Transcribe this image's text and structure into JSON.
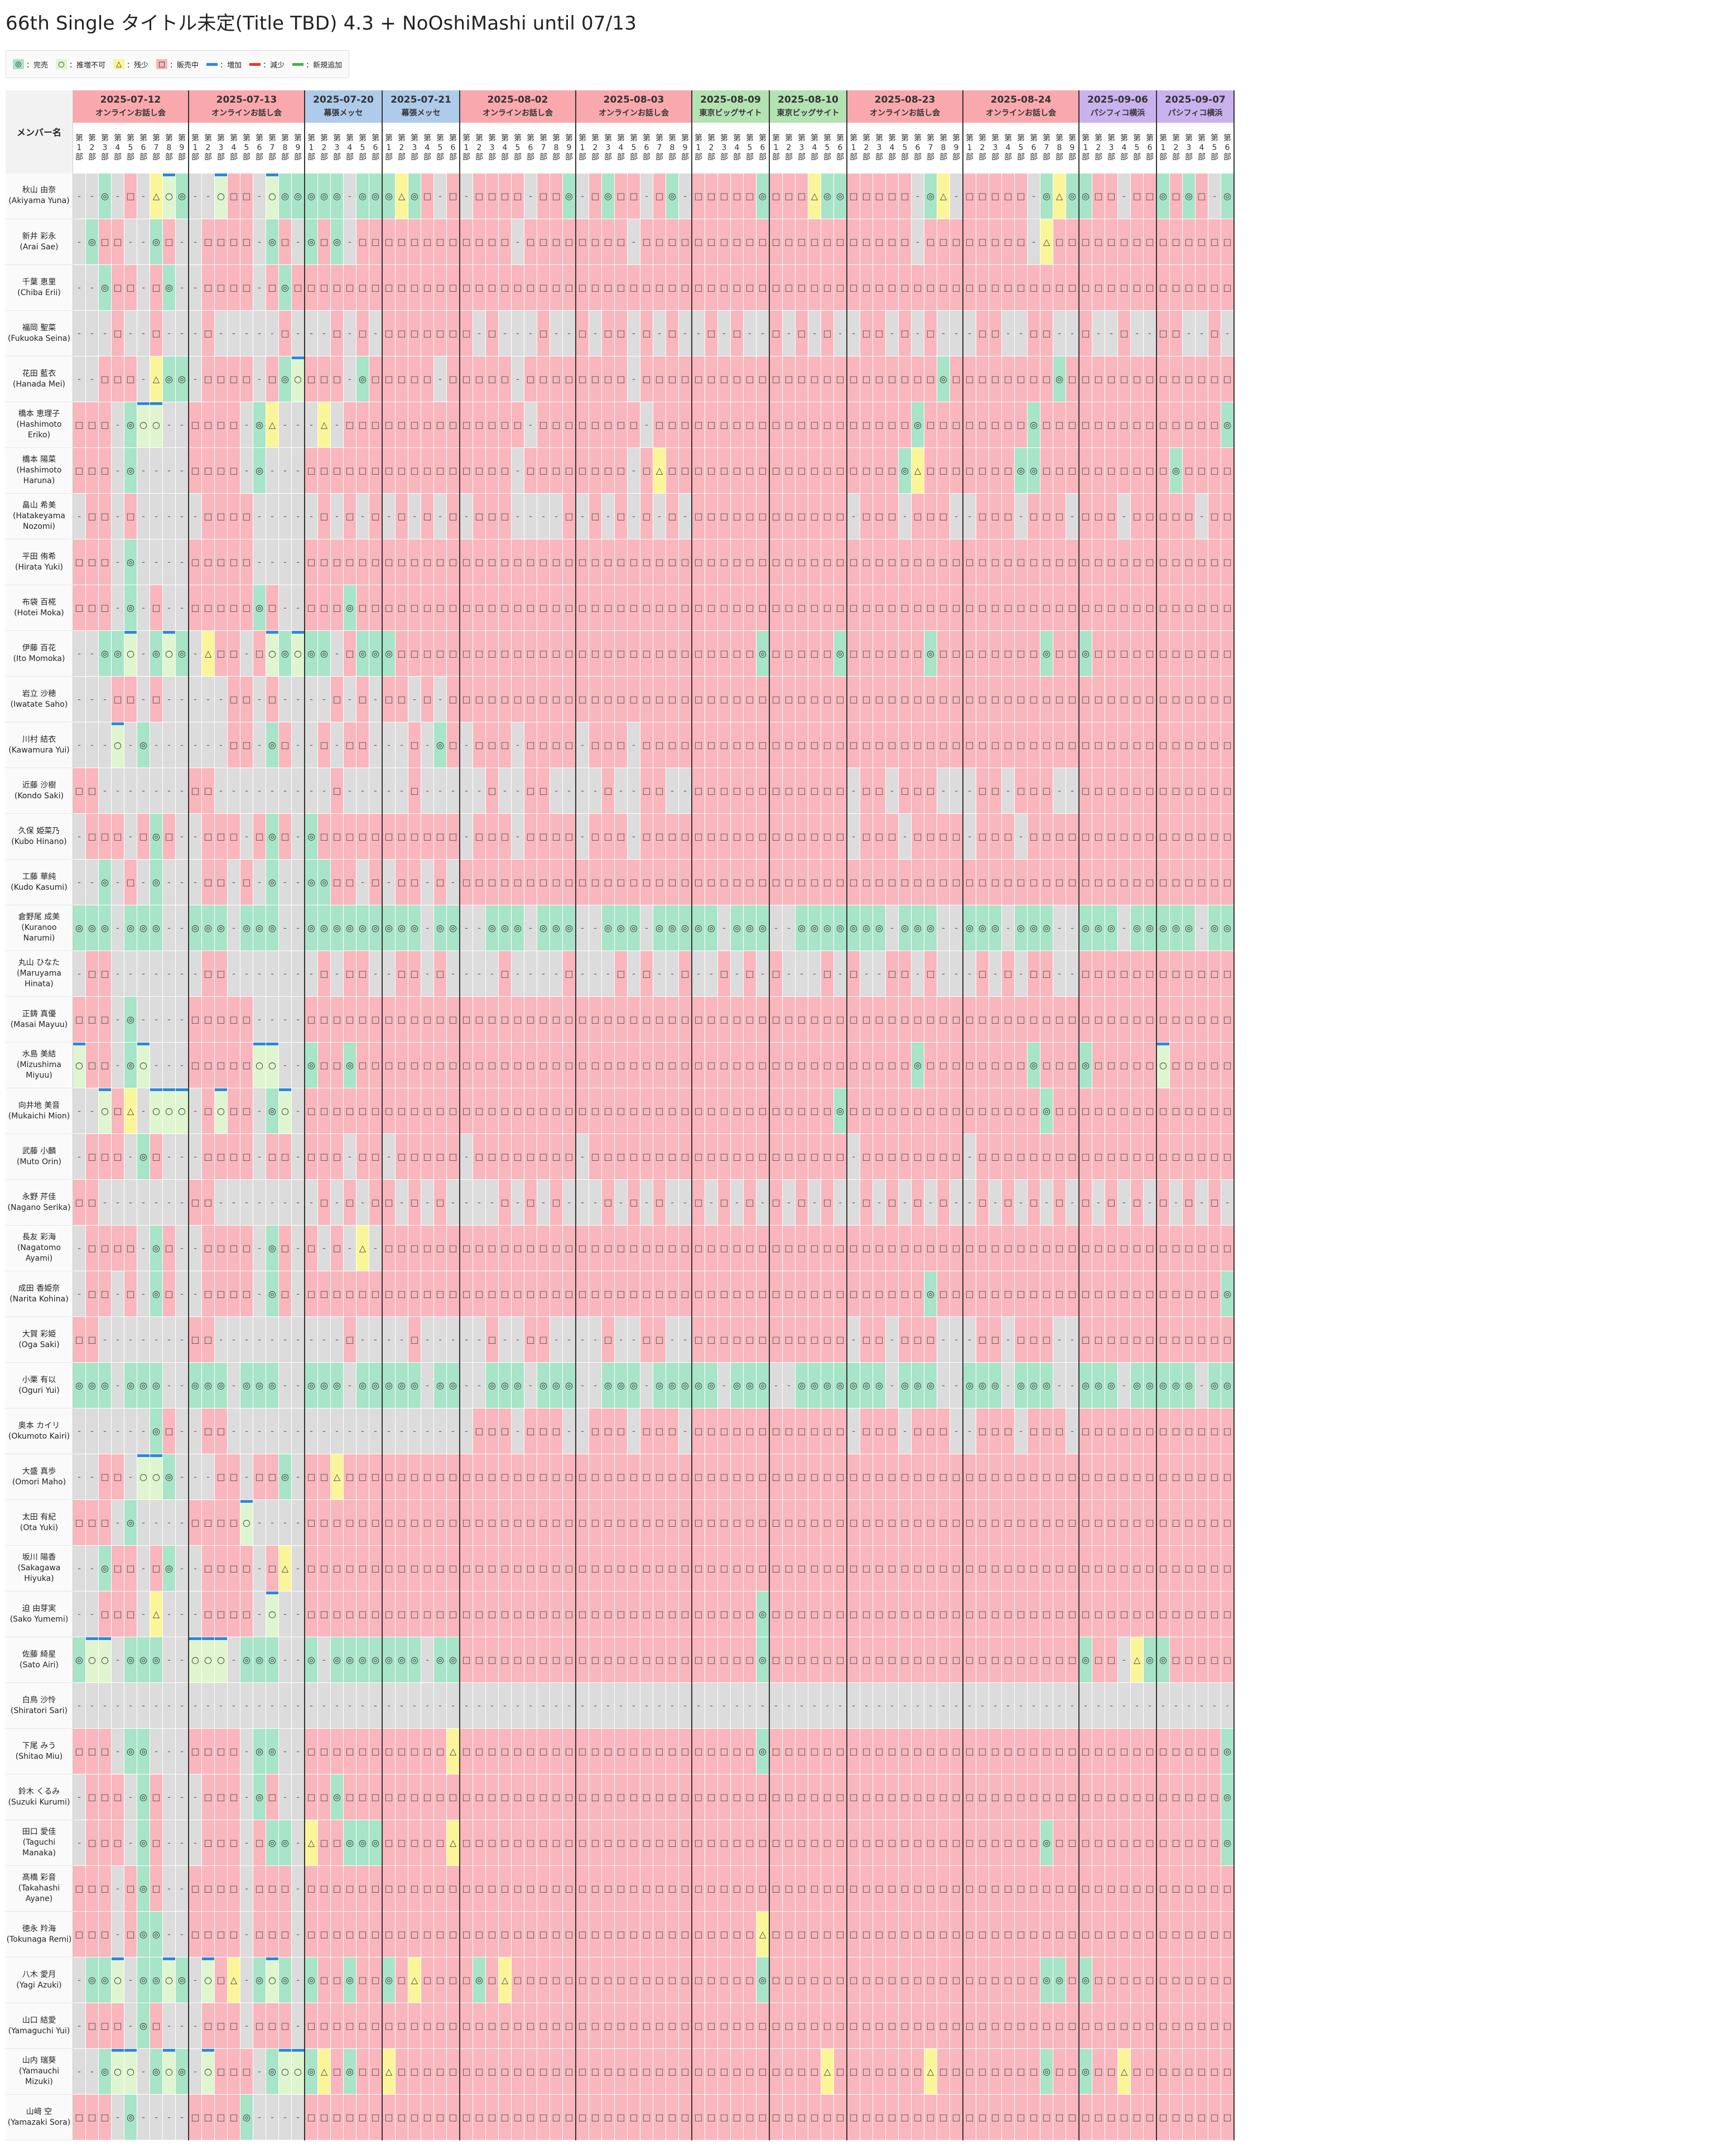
{
  "title": "66th Single タイトル未定(Title TBD) 4.3 + NoOshiMashi until 07/13",
  "legend": [
    {
      "symbol": "◎",
      "label": "：完売",
      "bg": "#a8e4c8",
      "kind": "cell"
    },
    {
      "symbol": "○",
      "label": "：推増不可",
      "bg": "#dff5cf",
      "kind": "cell"
    },
    {
      "symbol": "△",
      "label": "：残少",
      "bg": "#fbf59a",
      "kind": "cell"
    },
    {
      "symbol": "□",
      "label": "：販売中",
      "bg": "#f9b6bd",
      "kind": "cell"
    },
    {
      "symbol": "",
      "label": "：増加",
      "bg": "#2e86de",
      "kind": "bar"
    },
    {
      "symbol": "",
      "label": "：減少",
      "bg": "#e53935",
      "kind": "bar"
    },
    {
      "symbol": "",
      "label": "：新規追加",
      "bg": "#4caf50",
      "kind": "bar"
    }
  ],
  "corner_label": "メンバー名",
  "part_word": "第",
  "part_suffix": "部",
  "events": [
    {
      "date": "2025-07-12",
      "venue": "オンラインお話し会",
      "parts": 9,
      "color": "#f9a9ad"
    },
    {
      "date": "2025-07-13",
      "venue": "オンラインお話し会",
      "parts": 9,
      "color": "#f9a9ad"
    },
    {
      "date": "2025-07-20",
      "venue": "幕張メッセ",
      "parts": 6,
      "color": "#aecbea"
    },
    {
      "date": "2025-07-21",
      "venue": "幕張メッセ",
      "parts": 6,
      "color": "#aecbea"
    },
    {
      "date": "2025-08-02",
      "venue": "オンラインお話し会",
      "parts": 9,
      "color": "#f9a9ad"
    },
    {
      "date": "2025-08-03",
      "venue": "オンラインお話し会",
      "parts": 9,
      "color": "#f9a9ad"
    },
    {
      "date": "2025-08-09",
      "venue": "東京ビッグサイト",
      "parts": 6,
      "color": "#b3e2b3"
    },
    {
      "date": "2025-08-10",
      "venue": "東京ビッグサイト",
      "parts": 6,
      "color": "#b3e2b3"
    },
    {
      "date": "2025-08-23",
      "venue": "オンラインお話し会",
      "parts": 9,
      "color": "#f9a9ad"
    },
    {
      "date": "2025-08-24",
      "venue": "オンラインお話し会",
      "parts": 9,
      "color": "#f9a9ad"
    },
    {
      "date": "2025-09-06",
      "venue": "パシフィコ横浜",
      "parts": 6,
      "color": "#c9b2ee"
    },
    {
      "date": "2025-09-07",
      "venue": "パシフィコ横浜",
      "parts": 6,
      "color": "#c9b2ee"
    }
  ],
  "members": [
    {
      "jp": "秋山 由奈",
      "en": "(Akiyama Yuna)"
    },
    {
      "jp": "新井 彩永",
      "en": "(Arai Sae)"
    },
    {
      "jp": "千葉 恵里",
      "en": "(Chiba Erii)"
    },
    {
      "jp": "福岡 聖菜",
      "en": "(Fukuoka Seina)"
    },
    {
      "jp": "花田 藍衣",
      "en": "(Hanada Mei)"
    },
    {
      "jp": "橋本 恵理子",
      "en": "(Hashimoto Eriko)"
    },
    {
      "jp": "橋本 陽菜",
      "en": "(Hashimoto Haruna)"
    },
    {
      "jp": "畠山 希美",
      "en": "(Hatakeyama Nozomi)"
    },
    {
      "jp": "平田 侑希",
      "en": "(Hirata Yuki)"
    },
    {
      "jp": "布袋 百椛",
      "en": "(Hotei Moka)"
    },
    {
      "jp": "伊藤 百花",
      "en": "(Ito Momoka)"
    },
    {
      "jp": "岩立 沙穂",
      "en": "(Iwatate Saho)"
    },
    {
      "jp": "川村 結衣",
      "en": "(Kawamura Yui)"
    },
    {
      "jp": "近藤 沙樹",
      "en": "(Kondo Saki)"
    },
    {
      "jp": "久保 姫菜乃",
      "en": "(Kubo Hinano)"
    },
    {
      "jp": "工藤 華純",
      "en": "(Kudo Kasumi)"
    },
    {
      "jp": "倉野尾 成美",
      "en": "(Kuranoo Narumi)"
    },
    {
      "jp": "丸山 ひなた",
      "en": "(Maruyama Hinata)"
    },
    {
      "jp": "正鋳 真優",
      "en": "(Masai Mayuu)"
    },
    {
      "jp": "水島 美結",
      "en": "(Mizushima Miyuu)"
    },
    {
      "jp": "向井地 美音",
      "en": "(Mukaichi Mion)"
    },
    {
      "jp": "武藤 小麟",
      "en": "(Muto Orin)"
    },
    {
      "jp": "永野 芹佳",
      "en": "(Nagano Serika)"
    },
    {
      "jp": "長友 彩海",
      "en": "(Nagatomo Ayami)"
    },
    {
      "jp": "成田 香姫奈",
      "en": "(Narita Kohina)"
    },
    {
      "jp": "大賀 彩姫",
      "en": "(Oga Saki)"
    },
    {
      "jp": "小栗 有以",
      "en": "(Oguri Yui)"
    },
    {
      "jp": "奥本 カイリ",
      "en": "(Okumoto Kairi)"
    },
    {
      "jp": "大盛 真歩",
      "en": "(Omori Maho)"
    },
    {
      "jp": "太田 有紀",
      "en": "(Ota Yuki)"
    },
    {
      "jp": "坂川 陽香",
      "en": "(Sakagawa Hiyuka)"
    },
    {
      "jp": "迫 由芽実",
      "en": "(Sako Yumemi)"
    },
    {
      "jp": "佐藤 綺星",
      "en": "(Sato Airi)"
    },
    {
      "jp": "白鳥 沙怜",
      "en": "(Shiratori Sari)"
    },
    {
      "jp": "下尾 みう",
      "en": "(Shitao Miu)"
    },
    {
      "jp": "鈴木 くるみ",
      "en": "(Suzuki Kurumi)"
    },
    {
      "jp": "田口 愛佳",
      "en": "(Taguchi Manaka)"
    },
    {
      "jp": "髙橋 彩音",
      "en": "(Takahashi Ayane)"
    },
    {
      "jp": "徳永 羚海",
      "en": "(Tokunaga Remi)"
    },
    {
      "jp": "八木 愛月",
      "en": "(Yagi Azuki)"
    },
    {
      "jp": "山口 結愛",
      "en": "(Yamaguchi Yui)"
    },
    {
      "jp": "山内 瑞葵",
      "en": "(Yamauchi Mizuki)"
    },
    {
      "jp": "山﨑 空",
      "en": "(Yamazaki Sora)"
    }
  ],
  "cells": [
    "--◎-□-△○◎◎|--○□□-○◎◎|◎◎◎-◎◎|◎△◎□-□|-□□□□-□□◎|-□◎□□-□◎-|□□□□□◎|□□□△◎◎|□□□□□-◎△-|□□□□□-◎△◎|◎□□-□□|◎□◎□-◎",
    "-◎□□--◎□-|-□□□□-◎□-|◎□◎-□□|□□□□□□|□□□□-□□□□|□□□□-□□□□|□□□□□□|□□□□□□|□□□□□-□□□|□□□□□-△□□|□□□□□□|□□□□□□",
    "--◎□□-□◎-|-□□□□-□◎□|□□□□□□|□□□□□□|□□□□□□□□□|□□□□□□□□□|□□□□□□|□□□□□□|□□□□□□□□□|□□□□□□□□□|□□□□□□|□□□□□□",
    "---□--□--|-□-----□-|--□-□-|□□□□□□|□-□---□--|□-□□-□-□-|-□-□--|□-□-□-|-□□-□-□--|-□□--□□--|□--□--|□□--□-",
    "--□□□-△◎◎|-□□□□-□◎○|□□□-◎□|□□□□-□|□□□□-□□□□|□□□□-□□□□|□□□□□□|□□□□□□|□□□□□□□◎□|□□□□□□□◎□|□□□□□□|□□□□□□",
    "□□□-◎○○--|□□□□-◎△--|-△-□□□|□□□□□□|□□□□□-□□□|□□□□□-□□□|□□□□□□|□□□□□□|□□□□□◎□□□|□□□□□◎□□□|□□□□□□|□□□□□◎",
    "□□□-◎---|□□□□-◎---|□□□□□□|□□□□□□|□□□□-□□□□|□□□□-□△□□|□□□□□□|□□□□□□|□□□□◎△□□□|□□□□◎◎□□□|□□□□□□|□◎□□□□",
    "-□□-□----|-□□□□----|-□-□-□|-□-□-□|-□□□----□|-□-□-□-□-|□□□□□□|□□□□□□|-□□□-□□□-|-□□□-□□□-|□□□-□□|□□□-□□",
    "□□□-◎----|□□□□□----|□□□□□□|□□□□□□|□□□□□□□□□|□□□□□□□□□|□□□□□□|□□□□□□|□□□□□□□□□|□□□□□□□□□|□□□□□□|□□□□□□",
    "□□□-◎-□--|□□□□□◎□--|□□□◎□□|□□□□□□|□□□□□□□□□|□□□□□□□□□|□□□□□□|□□□□□□|□□□□□□□□□|□□□□□□□□□|□□□□□□|□□□□□□",
    "--◎◎○-◎○◎|-△□□-□○◎○|◎◎-□◎◎|◎□□□□□|□□□□□□□□□|□□□□□□□□□|□□□□□◎|□□□□□◎|□□□□□□◎□□|□□□□□□◎□□|◎□□□□□|□□□□□□",
    "---□□-□--|---□□-□--|--□-□-|□□-□-□|□□□□□□□□□|□□□□□□□□□|□□□□□□|□□□□□□|□□□□□□□□□|□□□□□□□□□|□□□□□□|□□□□□□",
    "---○-◎--|---□□-◎□-|-□-□□-|--□-◎□|-□□□-□□□□|-□□□-□□□□|□□□□□□|□□□□□□|□□□□□□□□□|□□□□□□□□□|□□□□□□|□□□□□□",
    "□□--------|□□-------|--□---|--□---|--□--□□--|--□--□□--|□□□□□□|□□□□□□|-□□-□□□--|-□□-□□□--|□□□□□□|□□□□□□",
    "-□□□-□◎□-|-□□□-□◎□-|◎□□□□□|□□□□□□|-□□□-□□□□|-□□□-□□□□|□□□□□□|□□□□□□|-□□□-□□□□|-□□□-□□□□|□□□□□□|□□□□□□",
    "--◎-□-◎--|-□□-□-◎--|◎◎□□-□|-□□-□-|□□□□□□□□□|□□□□□□□□□|□□□□□□|□□□□□□|□□□□□□□□□|□□□□□□□□□|□□□□□□|□□□□□□",
    "◎◎◎-◎◎◎--|◎◎◎-◎◎◎--|◎◎◎◎◎◎|◎◎◎-◎◎|--◎◎◎-◎◎◎|--◎◎◎-◎◎◎|◎◎-◎◎◎|--◎◎◎◎|◎◎◎-◎◎◎--|◎◎◎-◎◎◎--|◎◎◎-◎◎|◎◎◎-◎◎",
    "-□□------|-□□------|-□-□□-|-□□-□-|---□----□|---□-□--□|--□-□-|□---□-|□--□□-□--|-□-□-□□--|□□□□□□|□□□□□□",
    "□□□-◎----|□□□□□----|□□□□□□|□□□□□□|□□□□□□□□□|□□□□□□□□□|□□□□□□|□□□□□□|□□□□□□□□□|□□□□□□□□□|□□□□□□|□□□□□□",
    "○□□-◎○---|□□□□□○○--|◎□□◎□□|□□□□□□|□□□□□□□□□|□□□□□□□□□|□□□□□□|□□□□□□|□□□□□◎□□□|□□□□□◎□□□|◎□□□□□|○□□□□□",
    "--○□△-○○○|-□○□□-◎○-|□□□□□□|□□□□□□|□□□□□□□□□|□□□□□□□□□|□□□□□□|□□□□□◎|□□□□□□□□□|□□□□□□◎□□|□□□□□□|□□□□□□",
    "-□□□-◎□-|-□□□□-□□-|□□□-□□|-□□□□□|-□□□□□□□□|-□□□□□□□□|□□□□□□|□□□□□□|-□□□□□□□□|-□□□□□□□□|□□□□□□|□□□□□□",
    "□□-------|□□-------|-□-□-□|□-□-□-|---□-□-□-|--□-□-□--|□-□-□-|□-□-□-|-□-□-□-□-|-□-□-□-□-|□-□-□-|□-□-□-",
    "-□□□□-◎□-|-□□□□-◎□-|□-□-△-|□□□□□□|□□□□□□□□□|□□□□□□□□□|□□□□□□|□□□□□□|□□□□□□□□□|□□□□□□□□□|□□□□□□|□□□□□□",
    "-□□-□-◎□-|-□□□□-◎□-|□□□□□□|□□□□□□|□□□□□□□□□|□□□□□□□□□|□□□□□□|□□□□□□|□□□□□□◎□□|□□□□□□□□□|□□□□□□|□□□□□◎",
    "□□--------|□□-------|---□--|--□---|--□--□□--|--□--□□--|□□□□□□|□□□□□□|-□□-□□□--|-□□-□□□--|□□□□□□|□□□□□□",
    "◎◎◎-◎◎◎--|◎◎◎-◎◎◎--|◎◎◎-◎◎|◎◎◎-◎◎|--◎◎◎-◎◎◎|--◎◎◎-◎◎◎|◎◎-◎◎◎|--◎◎◎◎|◎◎◎-◎◎◎--|◎◎◎-◎◎◎--|◎◎◎-◎◎|◎◎◎-◎◎",
    "------◎□|-□□-----|------|------|-□□□-□□□-|-□□□-□□□-|□□□□□□|□□□□□□|-□□□-□□□-|-□□□-□□□-|□□□□□□|□□□□□□",
    "--□□-○○◎-|--□□-□□◎-|□□△□□□|□□□□□□|□□□□□□□□□|□□□□□□□□□|□□□□□□|□□□□□□|□□□□□□□□□|□□□□□□□□□|□□□□□□|□□□□□□",
    "□□□-◎----|□□□□○----|□□□□□□|□□□□□□|□□□□□□□□□|□□□□□□□□□|□□□□□□|□□□□□□|□□□□□□□□□|□□□□□□□□□|□□□□□□|□□□□□□",
    "--◎□□-□◎-|-□□□□-□△-|□□□□□□|□□□□□□|□□□□□□□□□|□□□□□□□□□|□□□□□□|□□□□□□|□□□□□□□□□|□□□□□□□□□|□□□□□□|□□□□□□",
    "--□□□-△--|-□□□□-○--|□□□□□□|□□□□□□|□□□□□□□□□|□□□□□□□□□|□□□□□◎|□□□□□□|□□□□□□□□□|□□□□□□□□□|□□□□□□|□□□□□□",
    "◎○○-◎◎◎--|○○○-◎◎◎--|◎-◎◎◎◎|◎◎◎-◎◎|□□□□□□□□□|□□□□□□□□□|□□□□□◎|□□□□□□|□□□□□□□□□|□□□□□□□□□|◎□□-△◎|◎□□□□□",
    "---------|---------|------|------|---------|---------|------|------|---------|---------|------|------",
    "□□□-◎◎---|□□□□-◎◎--|□□□□□□|□□□□□△|□□□□□□□□□|□□□□□□□□□|□□□□□◎|□□□□□□|□□□□□□□□□|□□□□□□□□□|□□□□□□|□□□□□◎",
    "-□□□-◎□--|-□□□-◎□--|□□◎□□□|□□□□□□|□□□□□□□□□|□□□□□□□□□|□□□□□□|□□□□□□|□□□□□□□□□|□□□□□□□□□|□□□□□□|□□□□□◎",
    "-□□□-◎□--|-□□□-□◎◎-|△□□◎◎◎|□□□□□△|□□□□□□□□□|□□□□□□□□□|□□□□□□|□□□□□□|□□□□□□□□□|□□□□□□◎□□|□□□□□□|□□□□□◎",
    "□□□-□◎□--|□□□□-□□□-|□□□□□□|□□□□□□|□□□□□□□□□|□□□□□□□□□|□□□□□□|□□□□□□|□□□□□□□□□|□□□□□□□□□|□□□□□□|□□□□□□",
    "□□□-□◎◎-|□□□□-□□□-|□□□□□□|□□□□□□|□□□□□□□□□|□□□□□□□□□|□□□□□△|□□□□□□|□□□□□□□□□|□□□□□□□□□|□□□□□□|□□□□□□",
    "-◎◎○-◎◎○◎|-○□△-◎○◎-|◎□□◎□□|◎□△□□□|□◎□△□□□□□|□□□□□□□□□|□□□□□◎|□□□□□□|□□□□□□□□□|□□□□□□◎◎□|◎□□□□□|□□□□□□",
    "-□□□-◎□--|-□□□-□□□-|□□□□□□|□□□□□□|□□□□□□□□□|□□□□□□□□□|□□□□□□|□□□□□□|□□□□□□□□□|□□□□□□□□□|□□□□□□|□□□□□□",
    "--◎○○-◎○◎|-○□□□-◎○○|◎△□◎□□|△□□□□□|□□□□□□□□□|□□□□□□□□□|□□□□□□|□□□□△□|□□□□□□△□□|□□□□□□◎□□|◎□□△□□|□□□□□□",
    "□□□-◎----|□□□□◎----|□□□□□□|□□□□□□|□□□□□□□□□|□□□□□□□□□|□□□□□□|□□□□□□|□□□□□□□□□|□□□□□□□□□|□□□□□□|□□□□□□"
  ]
}
